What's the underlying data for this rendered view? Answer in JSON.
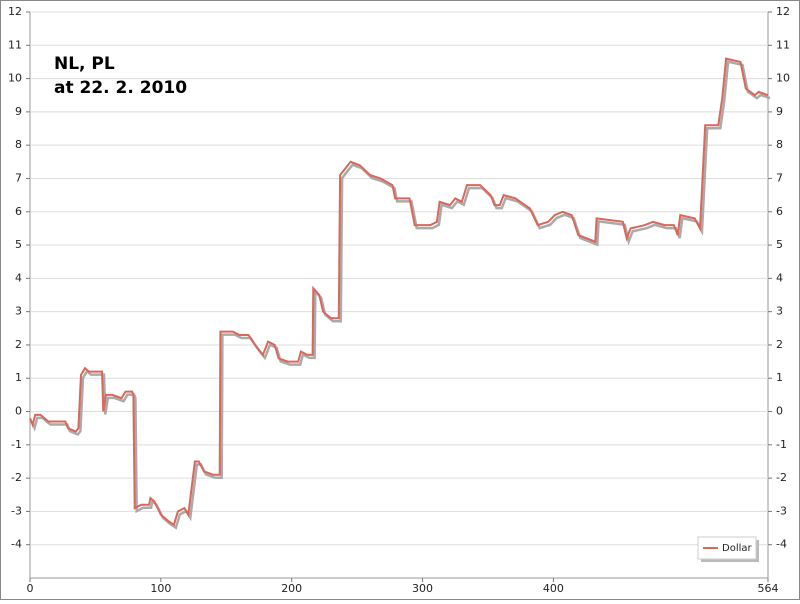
{
  "chart_data": {
    "type": "line",
    "annotation": [
      "NL, PL",
      "at 22. 2. 2010"
    ],
    "x": [
      0,
      2,
      4,
      8,
      14,
      27,
      29,
      35,
      37,
      39,
      42,
      45,
      55,
      56,
      58,
      63,
      70,
      73,
      78,
      79,
      80,
      85,
      91,
      92,
      95,
      100,
      106,
      110,
      113,
      118,
      121,
      126,
      129,
      133,
      140,
      145,
      145.5,
      155,
      160,
      167,
      172,
      178,
      182,
      187,
      190,
      197,
      205,
      207,
      212,
      216,
      216.5,
      221,
      224,
      230,
      236,
      237,
      245,
      252,
      260,
      268,
      277,
      279,
      290,
      294,
      306,
      311,
      313,
      321,
      325,
      330,
      334,
      344,
      352,
      355,
      359,
      362,
      371,
      382,
      388,
      396,
      401,
      407,
      414,
      419,
      432,
      433,
      453,
      456,
      459,
      470,
      476,
      485,
      492,
      495,
      497,
      508,
      512,
      516,
      526,
      529,
      532,
      543,
      547,
      554,
      557,
      564
    ],
    "series": [
      {
        "name": "Dollar",
        "color": "#d9675a",
        "values": [
          -0.2,
          -0.4,
          -0.1,
          -0.1,
          -0.3,
          -0.3,
          -0.5,
          -0.6,
          -0.5,
          1.1,
          1.3,
          1.2,
          1.2,
          0.0,
          0.5,
          0.5,
          0.4,
          0.6,
          0.6,
          0.5,
          -2.9,
          -2.8,
          -2.8,
          -2.6,
          -2.7,
          -3.1,
          -3.3,
          -3.4,
          -3.0,
          -2.9,
          -3.1,
          -1.5,
          -1.5,
          -1.8,
          -1.9,
          -1.9,
          2.4,
          2.4,
          2.3,
          2.3,
          2.0,
          1.7,
          2.1,
          2.0,
          1.6,
          1.5,
          1.5,
          1.8,
          1.7,
          1.7,
          3.7,
          3.5,
          3.0,
          2.8,
          2.8,
          7.1,
          7.5,
          7.4,
          7.1,
          7.0,
          6.8,
          6.4,
          6.4,
          5.6,
          5.6,
          5.7,
          6.3,
          6.2,
          6.4,
          6.3,
          6.8,
          6.8,
          6.5,
          6.2,
          6.2,
          6.5,
          6.4,
          6.1,
          5.6,
          5.7,
          5.9,
          6.0,
          5.9,
          5.3,
          5.1,
          5.8,
          5.7,
          5.2,
          5.5,
          5.6,
          5.7,
          5.6,
          5.6,
          5.3,
          5.9,
          5.8,
          5.5,
          8.6,
          8.6,
          9.4,
          10.6,
          10.5,
          9.7,
          9.5,
          9.6,
          9.5
        ]
      }
    ],
    "xlim": [
      0,
      564
    ],
    "xticks": [
      0,
      100,
      200,
      300,
      400,
      564
    ],
    "ylim": [
      -5,
      12
    ],
    "yticks": [
      -4,
      -3,
      -2,
      -1,
      0,
      1,
      2,
      3,
      4,
      5,
      6,
      7,
      8,
      9,
      10,
      11,
      12
    ],
    "grid": true,
    "legend": "lower right"
  }
}
